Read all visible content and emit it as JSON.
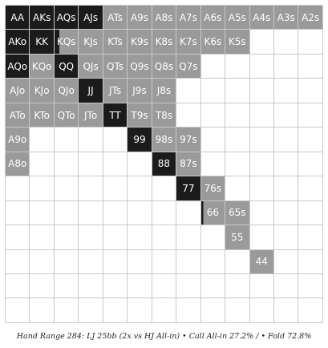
{
  "caption": "Hand Range 284: LJ 25bb (2x vs HJ All-in) • Call All-in 27.2% / • Fold 72.8%",
  "colors": {
    "raise": "#1b1b1b",
    "call": "#9a9a9a",
    "fold": "#ffffff"
  },
  "grid": [
    [
      [
        "AA",
        "raise"
      ],
      [
        "AKs",
        "raise"
      ],
      [
        "AQs",
        "raise"
      ],
      [
        "AJs",
        "raise"
      ],
      [
        "ATs",
        "call"
      ],
      [
        "A9s",
        "call"
      ],
      [
        "A8s",
        "call"
      ],
      [
        "A7s",
        "call"
      ],
      [
        "A6s",
        "call"
      ],
      [
        "A5s",
        "call"
      ],
      [
        "A4s",
        "call"
      ],
      [
        "A3s",
        "call"
      ],
      [
        "A2s",
        "call"
      ]
    ],
    [
      [
        "AKo",
        "raise"
      ],
      [
        "KK",
        "raise"
      ],
      [
        "KQs",
        "mixed"
      ],
      [
        "KJs",
        "call"
      ],
      [
        "KTs",
        "call"
      ],
      [
        "K9s",
        "call"
      ],
      [
        "K8s",
        "call"
      ],
      [
        "K7s",
        "call"
      ],
      [
        "K6s",
        "call"
      ],
      [
        "K5s",
        "call"
      ],
      [
        "",
        "fold"
      ],
      [
        "",
        "fold"
      ],
      [
        "",
        "fold"
      ]
    ],
    [
      [
        "AQo",
        "raise"
      ],
      [
        "KQo",
        "call"
      ],
      [
        "QQ",
        "raise"
      ],
      [
        "QJs",
        "call"
      ],
      [
        "QTs",
        "call"
      ],
      [
        "Q9s",
        "call"
      ],
      [
        "Q8s",
        "call"
      ],
      [
        "Q7s",
        "call"
      ],
      [
        "",
        "fold"
      ],
      [
        "",
        "fold"
      ],
      [
        "",
        "fold"
      ],
      [
        "",
        "fold"
      ],
      [
        "",
        "fold"
      ]
    ],
    [
      [
        "AJo",
        "call"
      ],
      [
        "KJo",
        "call"
      ],
      [
        "QJo",
        "call"
      ],
      [
        "JJ",
        "raise"
      ],
      [
        "JTs",
        "call"
      ],
      [
        "J9s",
        "call"
      ],
      [
        "J8s",
        "call"
      ],
      [
        "",
        "fold"
      ],
      [
        "",
        "fold"
      ],
      [
        "",
        "fold"
      ],
      [
        "",
        "fold"
      ],
      [
        "",
        "fold"
      ],
      [
        "",
        "fold"
      ]
    ],
    [
      [
        "ATo",
        "call"
      ],
      [
        "KTo",
        "call"
      ],
      [
        "QTo",
        "call"
      ],
      [
        "JTo",
        "call"
      ],
      [
        "TT",
        "raise"
      ],
      [
        "T9s",
        "call"
      ],
      [
        "T8s",
        "call"
      ],
      [
        "",
        "fold"
      ],
      [
        "",
        "fold"
      ],
      [
        "",
        "fold"
      ],
      [
        "",
        "fold"
      ],
      [
        "",
        "fold"
      ],
      [
        "",
        "fold"
      ]
    ],
    [
      [
        "A9o",
        "call"
      ],
      [
        "",
        "fold"
      ],
      [
        "",
        "fold"
      ],
      [
        "",
        "fold"
      ],
      [
        "",
        "fold"
      ],
      [
        "99",
        "raise"
      ],
      [
        "98s",
        "call"
      ],
      [
        "97s",
        "call"
      ],
      [
        "",
        "fold"
      ],
      [
        "",
        "fold"
      ],
      [
        "",
        "fold"
      ],
      [
        "",
        "fold"
      ],
      [
        "",
        "fold"
      ]
    ],
    [
      [
        "A8o",
        "call"
      ],
      [
        "",
        "fold"
      ],
      [
        "",
        "fold"
      ],
      [
        "",
        "fold"
      ],
      [
        "",
        "fold"
      ],
      [
        "",
        "fold"
      ],
      [
        "88",
        "raise"
      ],
      [
        "87s",
        "call"
      ],
      [
        "",
        "fold"
      ],
      [
        "",
        "fold"
      ],
      [
        "",
        "fold"
      ],
      [
        "",
        "fold"
      ],
      [
        "",
        "fold"
      ]
    ],
    [
      [
        "",
        "fold"
      ],
      [
        "",
        "fold"
      ],
      [
        "",
        "fold"
      ],
      [
        "",
        "fold"
      ],
      [
        "",
        "fold"
      ],
      [
        "",
        "fold"
      ],
      [
        "",
        "fold"
      ],
      [
        "77",
        "raise"
      ],
      [
        "76s",
        "call"
      ],
      [
        "",
        "fold"
      ],
      [
        "",
        "fold"
      ],
      [
        "",
        "fold"
      ],
      [
        "",
        "fold"
      ]
    ],
    [
      [
        "",
        "fold"
      ],
      [
        "",
        "fold"
      ],
      [
        "",
        "fold"
      ],
      [
        "",
        "fold"
      ],
      [
        "",
        "fold"
      ],
      [
        "",
        "fold"
      ],
      [
        "",
        "fold"
      ],
      [
        "",
        "fold"
      ],
      [
        "66",
        "call"
      ],
      [
        "65s",
        "call"
      ],
      [
        "",
        "fold"
      ],
      [
        "",
        "fold"
      ],
      [
        "",
        "fold"
      ]
    ],
    [
      [
        "",
        "fold"
      ],
      [
        "",
        "fold"
      ],
      [
        "",
        "fold"
      ],
      [
        "",
        "fold"
      ],
      [
        "",
        "fold"
      ],
      [
        "",
        "fold"
      ],
      [
        "",
        "fold"
      ],
      [
        "",
        "fold"
      ],
      [
        "",
        "fold"
      ],
      [
        "55",
        "call"
      ],
      [
        "",
        "fold"
      ],
      [
        "",
        "fold"
      ],
      [
        "",
        "fold"
      ]
    ],
    [
      [
        "",
        "fold"
      ],
      [
        "",
        "fold"
      ],
      [
        "",
        "fold"
      ],
      [
        "",
        "fold"
      ],
      [
        "",
        "fold"
      ],
      [
        "",
        "fold"
      ],
      [
        "",
        "fold"
      ],
      [
        "",
        "fold"
      ],
      [
        "",
        "fold"
      ],
      [
        "",
        "fold"
      ],
      [
        "44",
        "call"
      ],
      [
        "",
        "fold"
      ],
      [
        "",
        "fold"
      ]
    ],
    [
      [
        "",
        "fold"
      ],
      [
        "",
        "fold"
      ],
      [
        "",
        "fold"
      ],
      [
        "",
        "fold"
      ],
      [
        "",
        "fold"
      ],
      [
        "",
        "fold"
      ],
      [
        "",
        "fold"
      ],
      [
        "",
        "fold"
      ],
      [
        "",
        "fold"
      ],
      [
        "",
        "fold"
      ],
      [
        "",
        "fold"
      ],
      [
        "",
        "fold"
      ],
      [
        "",
        "fold"
      ]
    ],
    [
      [
        "",
        "fold"
      ],
      [
        "",
        "fold"
      ],
      [
        "",
        "fold"
      ],
      [
        "",
        "fold"
      ],
      [
        "",
        "fold"
      ],
      [
        "",
        "fold"
      ],
      [
        "",
        "fold"
      ],
      [
        "",
        "fold"
      ],
      [
        "",
        "fold"
      ],
      [
        "",
        "fold"
      ],
      [
        "",
        "fold"
      ],
      [
        "",
        "fold"
      ],
      [
        "",
        "fold"
      ]
    ]
  ]
}
